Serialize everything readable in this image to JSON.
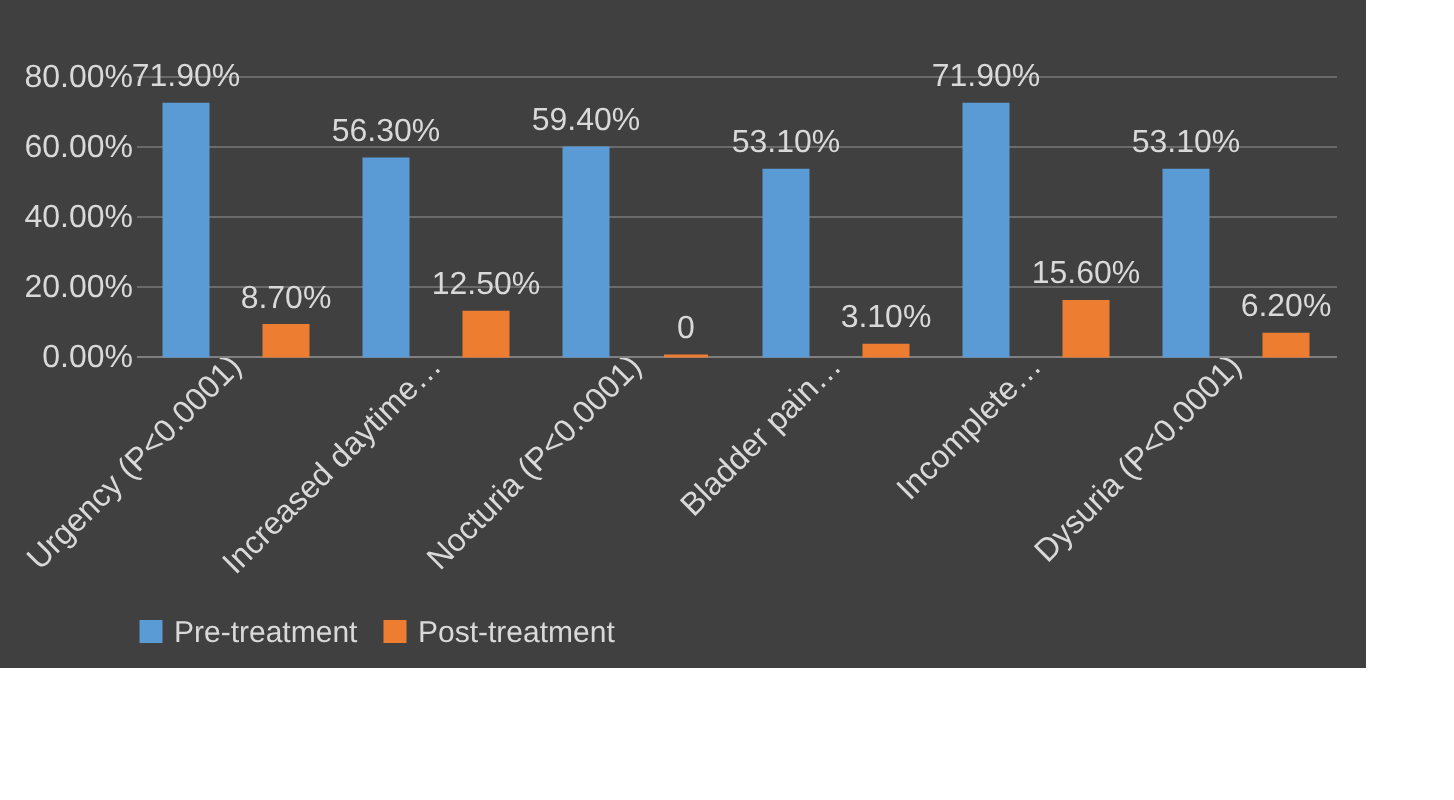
{
  "chart_data": {
    "type": "bar",
    "categories": [
      "Urgency (P<0.0001)",
      "Increased daytime…",
      "Nocturia (P<0.0001)",
      "Bladder pain…",
      "Incomplete…",
      "Dysuria (P<0.0001)"
    ],
    "series": [
      {
        "name": "Pre-treatment",
        "color": "#5b9bd5",
        "values": [
          71.9,
          56.3,
          59.4,
          53.1,
          71.9,
          53.1
        ],
        "value_labels": [
          "71.90%",
          "56.30%",
          "59.40%",
          "53.10%",
          "71.90%",
          "53.10%"
        ]
      },
      {
        "name": "Post-treatment",
        "color": "#ed7d31",
        "values": [
          8.7,
          12.5,
          0,
          3.1,
          15.6,
          6.2
        ],
        "value_labels": [
          "8.70%",
          "12.50%",
          "0",
          "3.10%",
          "15.60%",
          "6.20%"
        ]
      }
    ],
    "ylim": [
      0,
      80
    ],
    "yticks": [
      {
        "value": 0,
        "label": "0.00%"
      },
      {
        "value": 20,
        "label": "20.00%"
      },
      {
        "value": 40,
        "label": "40.00%"
      },
      {
        "value": 60,
        "label": "60.00%"
      },
      {
        "value": 80,
        "label": "80.00%"
      }
    ],
    "grid": "y",
    "legend": "bottom"
  }
}
